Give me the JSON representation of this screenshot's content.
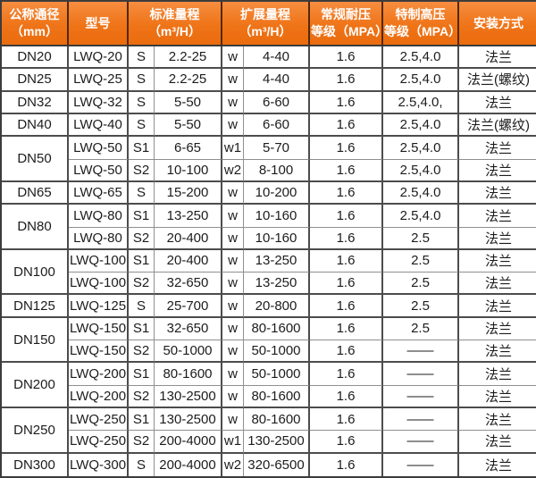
{
  "colors": {
    "header_gradient_top": "#f68d40",
    "header_gradient_bottom": "#ea6c0e",
    "header_text": "#ffffff",
    "grid_line": "#4c4c4c",
    "thin_grid_line": "#8f8f8f",
    "body_text": "#1c1c1c",
    "body_background": "#ffffff"
  },
  "chart_data": {
    "type": "table",
    "columns": {
      "dn": {
        "line1": "公称通径",
        "line2": "（mm）"
      },
      "model": {
        "line1": "型号",
        "line2": ""
      },
      "std": {
        "line1": "标准量程",
        "line2": "（m³/H）"
      },
      "ext": {
        "line1": "扩展量程",
        "line2": "（m³/H）"
      },
      "normal": {
        "line1": "常规耐压",
        "line2": "等级（MPA）"
      },
      "high": {
        "line1": "特制高压",
        "line2": "等级（MPA）"
      },
      "install": {
        "line1": "安装方式",
        "line2": ""
      }
    },
    "rows": [
      {
        "dn": "DN20",
        "dn_span": 2,
        "model": "LWQ-20",
        "s": "S",
        "std": "2.2-25",
        "w": "w",
        "ext": "4-40",
        "normal": "1.6",
        "high": "2.5,4.0",
        "install": "法兰"
      },
      {
        "dn": "DN25",
        "dn_span": 2,
        "model": "LWQ-25",
        "s": "S",
        "std": "2.2-25",
        "w": "w",
        "ext": "4-40",
        "normal": "1.6",
        "high": "2.5,4.0",
        "install": "法兰(螺纹)"
      },
      {
        "dn": "DN32",
        "dn_span": 2,
        "model": "LWQ-32",
        "s": "S",
        "std": "5-50",
        "w": "w",
        "ext": "6-60",
        "normal": "1.6",
        "high": "2.5,4.0,",
        "install": "法兰"
      },
      {
        "dn": "DN40",
        "dn_span": 2,
        "model": "LWQ-40",
        "s": "S",
        "std": "5-50",
        "w": "w",
        "ext": "6-60",
        "normal": "1.6",
        "high": "2.5,4.0",
        "install": "法兰(螺纹)"
      },
      {
        "dn": "DN50",
        "dn_span": 1,
        "model": "LWQ-50",
        "s": "S1",
        "std": "6-65",
        "w": "w1",
        "ext": "5-70",
        "normal": "1.6",
        "high": "2.5,4.0",
        "install": "法兰"
      },
      {
        "dn": null,
        "dn_span": 0,
        "model": "LWQ-50",
        "s": "S2",
        "std": "10-100",
        "w": "w2",
        "ext": "8-100",
        "normal": "1.6",
        "high": "2.5,4.0",
        "install": "法兰"
      },
      {
        "dn": "DN65",
        "dn_span": 2,
        "model": "LWQ-65",
        "s": "S",
        "std": "15-200",
        "w": "w",
        "ext": "10-200",
        "normal": "1.6",
        "high": "2.5,4.0",
        "install": "法兰"
      },
      {
        "dn": "DN80",
        "dn_span": 1,
        "model": "LWQ-80",
        "s": "S1",
        "std": "13-250",
        "w": "w",
        "ext": "10-160",
        "normal": "1.6",
        "high": "2.5,4.0",
        "install": "法兰"
      },
      {
        "dn": null,
        "dn_span": 0,
        "model": "LWQ-80",
        "s": "S2",
        "std": "20-400",
        "w": "w",
        "ext": "10-160",
        "normal": "1.6",
        "high": "2.5",
        "install": "法兰"
      },
      {
        "dn": "DN100",
        "dn_span": 1,
        "model": "LWQ-100",
        "s": "S1",
        "std": "20-400",
        "w": "w",
        "ext": "13-250",
        "normal": "1.6",
        "high": "2.5",
        "install": "法兰"
      },
      {
        "dn": null,
        "dn_span": 0,
        "model": "LWQ-100",
        "s": "S2",
        "std": "32-650",
        "w": "w",
        "ext": "13-250",
        "normal": "1.6",
        "high": "2.5",
        "install": "法兰"
      },
      {
        "dn": "DN125",
        "dn_span": 2,
        "model": "LWQ-125",
        "s": "S",
        "std": "25-700",
        "w": "w",
        "ext": "20-800",
        "normal": "1.6",
        "high": "2.5",
        "install": "法兰"
      },
      {
        "dn": "DN150",
        "dn_span": 1,
        "model": "LWQ-150",
        "s": "S1",
        "std": "32-650",
        "w": "w",
        "ext": "80-1600",
        "normal": "1.6",
        "high": "2.5",
        "install": "法兰"
      },
      {
        "dn": null,
        "dn_span": 0,
        "model": "LWQ-150",
        "s": "S2",
        "std": "50-1000",
        "w": "w",
        "ext": "50-1000",
        "normal": "1.6",
        "high": "——",
        "install": "法兰"
      },
      {
        "dn": "DN200",
        "dn_span": 1,
        "model": "LWQ-200",
        "s": "S1",
        "std": "80-1600",
        "w": "w",
        "ext": "50-1000",
        "normal": "1.6",
        "high": "——",
        "install": "法兰"
      },
      {
        "dn": null,
        "dn_span": 0,
        "model": "LWQ-200",
        "s": "S2",
        "std": "130-2500",
        "w": "w",
        "ext": "80-1600",
        "normal": "1.6",
        "high": "——",
        "install": "法兰"
      },
      {
        "dn": "DN250",
        "dn_span": 1,
        "model": "LWQ-250",
        "s": "S1",
        "std": "130-2500",
        "w": "w",
        "ext": "80-1600",
        "normal": "1.6",
        "high": "——",
        "install": "法兰"
      },
      {
        "dn": null,
        "dn_span": 0,
        "model": "LWQ-250",
        "s": "S2",
        "std": "200-4000",
        "w": "w1",
        "ext": "130-2500",
        "normal": "1.6",
        "high": "——",
        "install": "法兰"
      },
      {
        "dn": "DN300",
        "dn_span": 2,
        "model": "LWQ-300",
        "s": "S",
        "std": "200-4000",
        "w": "w2",
        "ext": "320-6500",
        "normal": "1.6",
        "high": "——",
        "install": "法兰"
      }
    ]
  }
}
